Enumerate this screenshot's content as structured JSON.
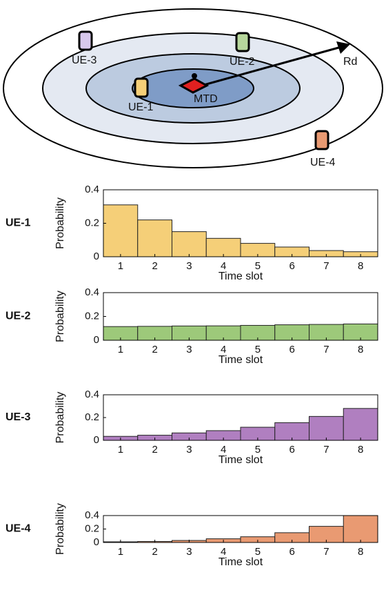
{
  "diagram": {
    "labels": [
      "UE-3",
      "UE-2",
      "UE-1",
      "MTD",
      "UE-4",
      "Rd"
    ]
  },
  "chart_data": [
    {
      "type": "bar",
      "title": "UE-1",
      "xlabel": "Time slot",
      "ylabel": "Probability",
      "categories": [
        "1",
        "2",
        "3",
        "4",
        "5",
        "6",
        "7",
        "8"
      ],
      "values": [
        0.31,
        0.22,
        0.15,
        0.11,
        0.08,
        0.058,
        0.037,
        0.03
      ],
      "color": "#f5cf78",
      "ylim": [
        0,
        0.4
      ],
      "yticks": [
        0,
        0.2,
        0.4
      ]
    },
    {
      "type": "bar",
      "title": "UE-2",
      "xlabel": "Time slot",
      "ylabel": "Probability",
      "categories": [
        "1",
        "2",
        "3",
        "4",
        "5",
        "6",
        "7",
        "8"
      ],
      "values": [
        0.115,
        0.117,
        0.12,
        0.121,
        0.125,
        0.13,
        0.133,
        0.137
      ],
      "color": "#9dc97a",
      "ylim": [
        0,
        0.4
      ],
      "yticks": [
        0,
        0.2,
        0.4
      ]
    },
    {
      "type": "bar",
      "title": "UE-3",
      "xlabel": "Time slot",
      "ylabel": "Probability",
      "categories": [
        "1",
        "2",
        "3",
        "4",
        "5",
        "6",
        "7",
        "8"
      ],
      "values": [
        0.035,
        0.045,
        0.065,
        0.085,
        0.115,
        0.155,
        0.21,
        0.28
      ],
      "color": "#b07fc0",
      "ylim": [
        0,
        0.4
      ],
      "yticks": [
        0,
        0.2,
        0.4
      ]
    },
    {
      "type": "bar",
      "title": "UE-4",
      "xlabel": "Time slot",
      "ylabel": "Probability",
      "categories": [
        "1",
        "2",
        "3",
        "4",
        "5",
        "6",
        "7",
        "8"
      ],
      "values": [
        0.01,
        0.015,
        0.03,
        0.055,
        0.085,
        0.145,
        0.24,
        0.4
      ],
      "color": "#e99a72",
      "ylim": [
        0,
        0.4
      ],
      "yticks": [
        0,
        0.2,
        0.4
      ]
    }
  ]
}
